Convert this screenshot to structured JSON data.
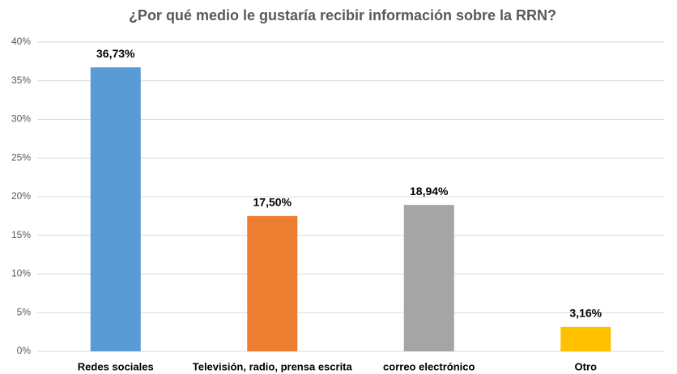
{
  "chart_data": {
    "type": "bar",
    "title": "¿Por qué medio le gustaría recibir información sobre la RRN?",
    "categories": [
      "Redes sociales",
      "Televisión, radio, prensa escrita",
      "correo electrónico",
      "Otro"
    ],
    "values": [
      36.73,
      17.5,
      18.94,
      3.16
    ],
    "value_labels": [
      "36,73%",
      "17,50%",
      "18,94%",
      "3,16%"
    ],
    "colors": [
      "#5b9bd5",
      "#ed7d31",
      "#a5a5a5",
      "#ffc000"
    ],
    "ylim": [
      0,
      40
    ],
    "yticks": [
      {
        "value": 0,
        "label": "0%"
      },
      {
        "value": 5,
        "label": "5%"
      },
      {
        "value": 10,
        "label": "10%"
      },
      {
        "value": 15,
        "label": "15%"
      },
      {
        "value": 20,
        "label": "20%"
      },
      {
        "value": 25,
        "label": "25%"
      },
      {
        "value": 30,
        "label": "30%"
      },
      {
        "value": 35,
        "label": "35%"
      },
      {
        "value": 40,
        "label": "40%"
      }
    ],
    "grid": true
  }
}
